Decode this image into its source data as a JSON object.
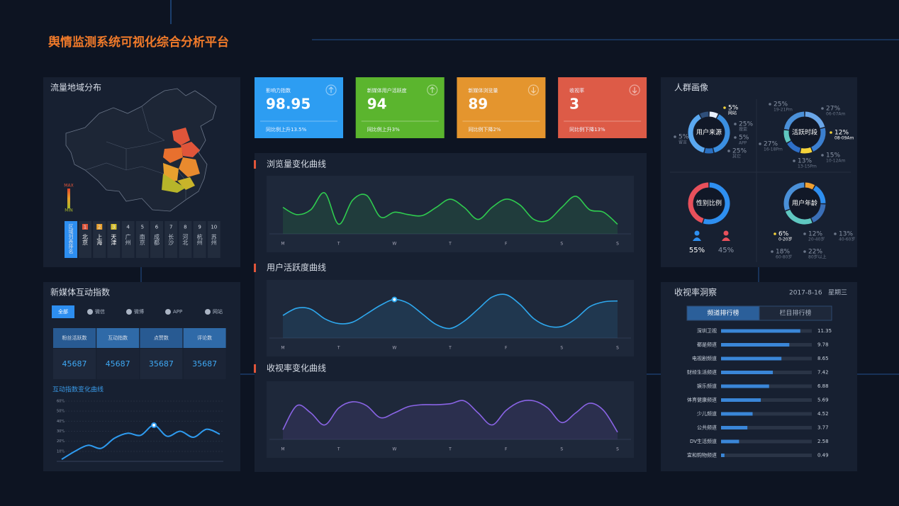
{
  "header": {
    "title": "舆情监测系统可视化综合分析平台"
  },
  "map": {
    "title": "流量地域分布",
    "legend_max": "MAX",
    "legend_min": "MIN",
    "ranking_header": "区域列表排名",
    "ranking": [
      {
        "rank": 1,
        "city": "北京"
      },
      {
        "rank": 2,
        "city": "上海"
      },
      {
        "rank": 3,
        "city": "天津"
      },
      {
        "rank": 4,
        "city": "广州"
      },
      {
        "rank": 5,
        "city": "南京"
      },
      {
        "rank": 6,
        "city": "成都"
      },
      {
        "rank": 7,
        "city": "长沙"
      },
      {
        "rank": 8,
        "city": "河北"
      },
      {
        "rank": 9,
        "city": "杭州"
      },
      {
        "rank": 10,
        "city": "苏州"
      }
    ]
  },
  "kpis": [
    {
      "label": "影响力指数",
      "value": 98.95,
      "note": "同比例上升13.5%",
      "trend": "up",
      "color": "#2d9df2"
    },
    {
      "label": "新媒体用户活跃度",
      "value": 94,
      "note": "同比例上升3%",
      "trend": "up",
      "color": "#5bb52e"
    },
    {
      "label": "新媒体浏览量",
      "value": 89,
      "note": "同比例下降2%",
      "trend": "down",
      "color": "#e4952e"
    },
    {
      "label": "收视率",
      "value": 3,
      "note": "同比例下降13%",
      "trend": "down",
      "color": "#dd5b47"
    }
  ],
  "trend_panel": {
    "charts": [
      {
        "type": "line",
        "title": "浏览量变化曲线",
        "color": "#2fcb4f",
        "ylim": [
          0,
          100
        ],
        "categories": [
          "M",
          null,
          null,
          null,
          "T",
          null,
          null,
          null,
          "W",
          null,
          null,
          null,
          "T",
          null,
          null,
          null,
          "F",
          null,
          null,
          null,
          "S",
          null,
          null,
          null,
          "S"
        ],
        "values": [
          55,
          40,
          50,
          85,
          20,
          70,
          80,
          35,
          45,
          40,
          38,
          55,
          72,
          55,
          30,
          55,
          72,
          60,
          30,
          28,
          55,
          78,
          50,
          45,
          20
        ]
      },
      {
        "type": "line",
        "title": "用户活跃度曲线",
        "color": "#2ea8ee",
        "ylim": [
          0,
          100
        ],
        "highlight": 8,
        "categories": [
          "M",
          null,
          null,
          null,
          "T",
          null,
          null,
          null,
          "W",
          null,
          null,
          null,
          "T",
          null,
          null,
          null,
          "F",
          null,
          null,
          null,
          "S",
          null,
          null,
          null,
          "S"
        ],
        "values": [
          47,
          62,
          60,
          40,
          30,
          33,
          50,
          68,
          80,
          72,
          50,
          28,
          20,
          35,
          60,
          85,
          90,
          70,
          40,
          25,
          24,
          40,
          65,
          75,
          77
        ]
      },
      {
        "type": "line",
        "title": "收视率变化曲线",
        "color": "#8a64e6",
        "ylim": [
          0,
          100
        ],
        "categories": [
          "M",
          null,
          null,
          null,
          "T",
          null,
          null,
          null,
          "W",
          null,
          null,
          null,
          "T",
          null,
          null,
          null,
          "F",
          null,
          null,
          null,
          "S",
          null,
          null,
          null,
          "S"
        ],
        "values": [
          20,
          70,
          55,
          30,
          65,
          78,
          70,
          45,
          55,
          68,
          72,
          72,
          74,
          80,
          55,
          30,
          60,
          78,
          80,
          65,
          35,
          55,
          75,
          60,
          15
        ]
      }
    ]
  },
  "media": {
    "title": "新媒体互动指数",
    "tabs": [
      "全部",
      "微信",
      "微博",
      "APP",
      "网站"
    ],
    "active_tab": 0,
    "table": {
      "headers": [
        "粉丝活跃数",
        "互动指数",
        "点赞数",
        "评论数"
      ],
      "values": [
        45687,
        45687,
        35687,
        35687
      ]
    },
    "chart": {
      "type": "line",
      "title": "互动指数变化曲线",
      "color": "#2e9bf0",
      "highlight": 7,
      "ylim": [
        0,
        60
      ],
      "yticks": [
        {
          "value": 10,
          "label": "10%"
        },
        {
          "value": 20,
          "label": "20%"
        },
        {
          "value": 30,
          "label": "30%"
        },
        {
          "value": 40,
          "label": "40%"
        },
        {
          "value": 50,
          "label": "50%"
        },
        {
          "value": 60,
          "label": "60%"
        }
      ],
      "values": [
        2,
        10,
        16,
        13,
        23,
        28,
        26,
        36,
        25,
        30,
        24,
        32,
        27
      ]
    }
  },
  "crowd": {
    "title": "人群画像",
    "source": {
      "label": "用户来源",
      "colors": [
        "#e8f0ff",
        "#3b8fe0",
        "#2a6fc0",
        "#5aa8f0",
        "#2f4f7a"
      ],
      "items": [
        {
          "value": 5,
          "label": "5%",
          "name": "网站"
        },
        {
          "value": 25,
          "label": "25%",
          "name": "搜索"
        },
        {
          "value": 5,
          "label": "5%",
          "name": "APP"
        },
        {
          "value": 25,
          "label": "25%",
          "name": "其它"
        },
        {
          "value": 5,
          "label": "5%",
          "name": "留言"
        }
      ]
    },
    "active": {
      "label": "活跃时段",
      "highlight": 2,
      "colors": [
        "#6aa6e8",
        "#3b7fd0",
        "#f5d33a",
        "#2e6fc8",
        "#5fc7c0",
        "#4a90d8"
      ],
      "items": [
        {
          "value": 25,
          "label": "25%",
          "name": "19-21Pm"
        },
        {
          "value": 27,
          "label": "27%",
          "name": "06-07Am"
        },
        {
          "value": 12,
          "label": "12%",
          "name": "08-09Am"
        },
        {
          "value": 15,
          "label": "15%",
          "name": "10-12Am"
        },
        {
          "value": 13,
          "label": "13%",
          "name": "13-15Pm"
        },
        {
          "value": 27,
          "label": "27%",
          "name": "16-18Pm"
        }
      ]
    },
    "gender": {
      "label": "性别比例",
      "colors": [
        "#2e8ff0",
        "#e8505b"
      ],
      "items": [
        {
          "value": 55,
          "label": "55%"
        },
        {
          "value": 45,
          "label": "45%"
        }
      ]
    },
    "age": {
      "label": "用户年龄",
      "colors": [
        "#f0a030",
        "#2e8ff0",
        "#3a6fb8",
        "#5fc7c0",
        "#4a90d8"
      ],
      "items": [
        {
          "value": 6,
          "label": "6%",
          "name": "0-20岁"
        },
        {
          "value": 12,
          "label": "12%",
          "name": "20-40岁"
        },
        {
          "value": 13,
          "label": "13%",
          "name": "40-60岁"
        },
        {
          "value": 18,
          "label": "18%",
          "name": "60-80岁"
        },
        {
          "value": 22,
          "label": "22%",
          "name": "80岁以上"
        }
      ]
    }
  },
  "ratings": {
    "title": "收视率洞察",
    "date": "2017-8-16",
    "weekday": "星期三",
    "tabs": [
      "频道排行榜",
      "栏目排行榜"
    ],
    "active_tab": 0,
    "color": "#3a86d8",
    "xlim": [
      0,
      13
    ],
    "channels": [
      "深圳卫视",
      "都是频道",
      "电视剧频道",
      "财经生活频道",
      "娱乐频道",
      "体育健康频道",
      "少儿频道",
      "公共频道",
      "DV生活频道",
      "宜和购物频道"
    ],
    "values": [
      11.35,
      9.78,
      8.65,
      7.42,
      6.88,
      5.69,
      4.52,
      3.77,
      2.58,
      0.49
    ]
  }
}
